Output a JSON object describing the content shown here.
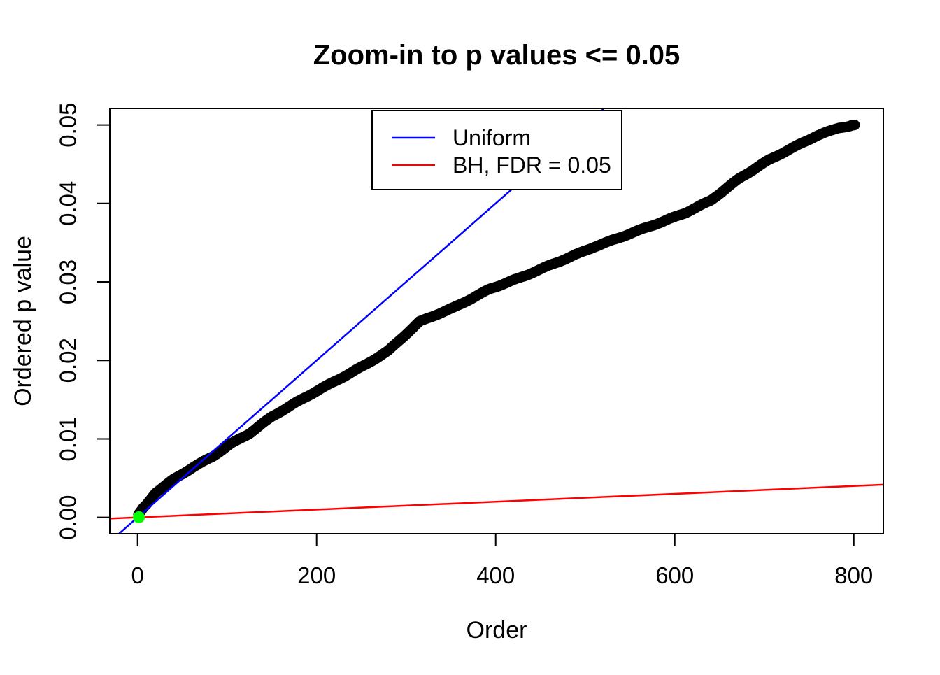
{
  "chart_data": {
    "type": "scatter",
    "title": "Zoom-in to p values <= 0.05",
    "xlabel": "Order",
    "ylabel": "Ordered p value",
    "xlim": [
      -31,
      833
    ],
    "ylim": [
      -0.00208,
      0.0521
    ],
    "grid": false,
    "x_ticks": [
      0,
      200,
      400,
      600,
      800
    ],
    "x_tick_labels": [
      "0",
      "200",
      "400",
      "600",
      "800"
    ],
    "y_ticks": [
      0.0,
      0.01,
      0.02,
      0.03,
      0.04,
      0.05
    ],
    "y_tick_labels": [
      "0.00",
      "0.01",
      "0.02",
      "0.03",
      "0.04",
      "0.05"
    ],
    "legend": {
      "position": "top-center",
      "entries": [
        {
          "label": "Uniform",
          "color": "#0000ff"
        },
        {
          "label": "BH, FDR = 0.05",
          "color": "#ff0000"
        }
      ]
    },
    "series": [
      {
        "name": "ordered-p-values",
        "type": "points",
        "color": "#000000",
        "marker": "filled-circle",
        "marker_diameter_px": 15,
        "note": "ordered p values <= 0.05, orders 1..801; control points [order, p] sampled from the dense black band",
        "points": [
          [
            1,
            0.0004
          ],
          [
            5,
            0.001
          ],
          [
            10,
            0.0016
          ],
          [
            20,
            0.0031
          ],
          [
            40,
            0.0048
          ],
          [
            62,
            0.0064
          ],
          [
            84,
            0.0078
          ],
          [
            104,
            0.0094
          ],
          [
            125,
            0.0107
          ],
          [
            150,
            0.0128
          ],
          [
            177,
            0.0146
          ],
          [
            203,
            0.0163
          ],
          [
            229,
            0.0179
          ],
          [
            255,
            0.0195
          ],
          [
            280,
            0.0212
          ],
          [
            315,
            0.0249
          ],
          [
            354,
            0.0268
          ],
          [
            393,
            0.0291
          ],
          [
            432,
            0.0307
          ],
          [
            471,
            0.0326
          ],
          [
            510,
            0.0345
          ],
          [
            549,
            0.0361
          ],
          [
            588,
            0.0377
          ],
          [
            612,
            0.0388
          ],
          [
            640,
            0.0404
          ],
          [
            672,
            0.0432
          ],
          [
            705,
            0.0455
          ],
          [
            731,
            0.047
          ],
          [
            758,
            0.0486
          ],
          [
            784,
            0.0497
          ],
          [
            801,
            0.05
          ]
        ]
      },
      {
        "name": "uniform-line",
        "type": "line",
        "color": "#0000ff",
        "intercept": 0,
        "slope": 0.0001
      },
      {
        "name": "bh-fdr-line",
        "type": "line",
        "color": "#ff0000",
        "intercept": 0,
        "slope": 5e-06
      },
      {
        "name": "smallest-p-highlight",
        "type": "point",
        "color": "#00ff00",
        "point": [
          1.5,
          2e-05
        ],
        "radius_px": 8.5
      }
    ]
  }
}
